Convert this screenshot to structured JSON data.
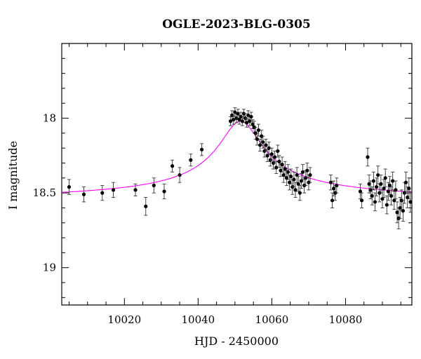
{
  "chart_data": {
    "type": "scatter",
    "title": "OGLE-2023-BLG-0305",
    "xlabel": "HJD - 2450000",
    "ylabel": "I magnitude",
    "xlim": [
      10003,
      10098
    ],
    "ylim": [
      19.25,
      17.5
    ],
    "y_inverted": true,
    "grid": false,
    "x_ticks": [
      10020,
      10040,
      10060,
      10080
    ],
    "x_tick_labels": [
      "10020",
      "10040",
      "10060",
      "10080"
    ],
    "x_minor_step": 5,
    "y_ticks": [
      18,
      18.5,
      19
    ],
    "y_tick_labels": [
      "18",
      "18.5",
      "19"
    ],
    "y_minor_step": 0.1,
    "colors": {
      "data": "#000000",
      "model": "#ff00ff",
      "frame": "#000000"
    },
    "series": [
      {
        "kind": "data-with-errorbars",
        "points": [
          [
            10005.0,
            18.46,
            0.05
          ],
          [
            10009.0,
            18.51,
            0.05
          ],
          [
            10014.0,
            18.5,
            0.05
          ],
          [
            10017.0,
            18.48,
            0.05
          ],
          [
            10023.0,
            18.48,
            0.04
          ],
          [
            10025.8,
            18.59,
            0.06
          ],
          [
            10028.0,
            18.45,
            0.05
          ],
          [
            10030.8,
            18.49,
            0.05
          ],
          [
            10033.0,
            18.32,
            0.04
          ],
          [
            10035.0,
            18.38,
            0.05
          ],
          [
            10038.0,
            18.28,
            0.04
          ],
          [
            10041.0,
            18.21,
            0.04
          ],
          [
            10048.8,
            18.02,
            0.03
          ],
          [
            10049.2,
            17.98,
            0.03
          ],
          [
            10049.6,
            18.01,
            0.03
          ],
          [
            10050.0,
            17.96,
            0.03
          ],
          [
            10050.4,
            18.0,
            0.03
          ],
          [
            10050.8,
            17.97,
            0.03
          ],
          [
            10051.2,
            18.01,
            0.03
          ],
          [
            10051.6,
            17.99,
            0.03
          ],
          [
            10052.0,
            18.02,
            0.03
          ],
          [
            10052.4,
            17.97,
            0.03
          ],
          [
            10052.8,
            18.0,
            0.03
          ],
          [
            10053.2,
            18.03,
            0.03
          ],
          [
            10053.6,
            17.98,
            0.03
          ],
          [
            10054.0,
            18.02,
            0.03
          ],
          [
            10054.4,
            17.99,
            0.03
          ],
          [
            10054.8,
            18.04,
            0.03
          ],
          [
            10055.2,
            18.06,
            0.04
          ],
          [
            10055.6,
            18.1,
            0.04
          ],
          [
            10056.0,
            18.14,
            0.04
          ],
          [
            10056.4,
            18.08,
            0.04
          ],
          [
            10056.8,
            18.18,
            0.04
          ],
          [
            10057.2,
            18.12,
            0.04
          ],
          [
            10057.6,
            18.16,
            0.04
          ],
          [
            10058.0,
            18.22,
            0.04
          ],
          [
            10058.4,
            18.18,
            0.04
          ],
          [
            10058.8,
            18.25,
            0.04
          ],
          [
            10059.2,
            18.2,
            0.04
          ],
          [
            10059.6,
            18.28,
            0.04
          ],
          [
            10060.0,
            18.24,
            0.04
          ],
          [
            10060.4,
            18.3,
            0.04
          ],
          [
            10060.8,
            18.26,
            0.04
          ],
          [
            10061.2,
            18.33,
            0.04
          ],
          [
            10061.6,
            18.22,
            0.04
          ],
          [
            10062.0,
            18.29,
            0.04
          ],
          [
            10062.4,
            18.35,
            0.04
          ],
          [
            10062.8,
            18.31,
            0.05
          ],
          [
            10063.2,
            18.38,
            0.05
          ],
          [
            10063.6,
            18.34,
            0.05
          ],
          [
            10064.0,
            18.4,
            0.05
          ],
          [
            10064.4,
            18.36,
            0.05
          ],
          [
            10064.8,
            18.43,
            0.05
          ],
          [
            10065.2,
            18.39,
            0.05
          ],
          [
            10065.6,
            18.46,
            0.05
          ],
          [
            10066.0,
            18.41,
            0.05
          ],
          [
            10066.4,
            18.48,
            0.05
          ],
          [
            10066.8,
            18.38,
            0.05
          ],
          [
            10067.2,
            18.44,
            0.05
          ],
          [
            10067.6,
            18.5,
            0.05
          ],
          [
            10068.0,
            18.42,
            0.05
          ],
          [
            10068.4,
            18.36,
            0.05
          ],
          [
            10068.8,
            18.45,
            0.05
          ],
          [
            10069.2,
            18.4,
            0.05
          ],
          [
            10069.6,
            18.35,
            0.05
          ],
          [
            10070.0,
            18.43,
            0.05
          ],
          [
            10070.4,
            18.38,
            0.05
          ],
          [
            10076.0,
            18.43,
            0.05
          ],
          [
            10076.4,
            18.55,
            0.05
          ],
          [
            10076.8,
            18.47,
            0.05
          ],
          [
            10077.2,
            18.5,
            0.05
          ],
          [
            10077.6,
            18.45,
            0.05
          ],
          [
            10084.0,
            18.49,
            0.05
          ],
          [
            10084.4,
            18.55,
            0.05
          ],
          [
            10086.0,
            18.26,
            0.06
          ],
          [
            10086.4,
            18.44,
            0.06
          ],
          [
            10086.8,
            18.48,
            0.06
          ],
          [
            10087.2,
            18.52,
            0.06
          ],
          [
            10087.6,
            18.42,
            0.06
          ],
          [
            10088.0,
            18.56,
            0.06
          ],
          [
            10088.4,
            18.46,
            0.06
          ],
          [
            10088.8,
            18.38,
            0.06
          ],
          [
            10089.2,
            18.5,
            0.06
          ],
          [
            10089.6,
            18.44,
            0.06
          ],
          [
            10090.0,
            18.54,
            0.06
          ],
          [
            10090.4,
            18.47,
            0.06
          ],
          [
            10090.8,
            18.4,
            0.06
          ],
          [
            10091.2,
            18.58,
            0.06
          ],
          [
            10091.6,
            18.49,
            0.06
          ],
          [
            10092.0,
            18.45,
            0.06
          ],
          [
            10092.4,
            18.52,
            0.06
          ],
          [
            10092.8,
            18.42,
            0.06
          ],
          [
            10093.2,
            18.55,
            0.06
          ],
          [
            10093.6,
            18.48,
            0.06
          ],
          [
            10094.0,
            18.63,
            0.07
          ],
          [
            10094.4,
            18.67,
            0.07
          ],
          [
            10094.8,
            18.6,
            0.07
          ],
          [
            10095.2,
            18.55,
            0.07
          ],
          [
            10095.6,
            18.62,
            0.07
          ],
          [
            10096.0,
            18.5,
            0.07
          ],
          [
            10096.4,
            18.43,
            0.07
          ],
          [
            10096.8,
            18.53,
            0.07
          ],
          [
            10097.2,
            18.47,
            0.07
          ],
          [
            10097.6,
            18.56,
            0.07
          ]
        ]
      },
      {
        "kind": "model-curve",
        "t0": 10051.5,
        "baseline_mag": 18.56,
        "peak_amplitude": 0.54,
        "width_days": 5.8
      }
    ]
  }
}
